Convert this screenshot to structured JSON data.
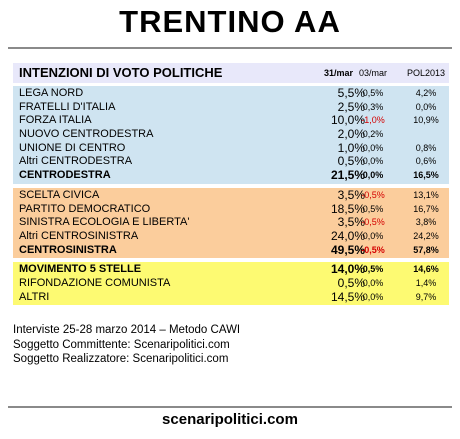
{
  "title": "TRENTINO AA",
  "header": {
    "label": "INTENZIONI DI VOTO POLITICHE",
    "col1": "31/mar",
    "col2": "03/mar",
    "col3": "POL2013"
  },
  "centrodestra": [
    {
      "name": "LEGA NORD",
      "v1": "5,5%",
      "v2": "0,5%",
      "v3": "4,2%"
    },
    {
      "name": "FRATELLI D'ITALIA",
      "v1": "2,5%",
      "v2": "0,3%",
      "v3": "0,0%"
    },
    {
      "name": "FORZA ITALIA",
      "v1": "10,0%",
      "v2": "-1,0%",
      "v2_neg": true,
      "v3": "10,9%"
    },
    {
      "name": "NUOVO CENTRODESTRA",
      "v1": "2,0%",
      "v2": "0,2%",
      "v3": ""
    },
    {
      "name": "UNIONE DI CENTRO",
      "v1": "1,0%",
      "v2": "0,0%",
      "v3": "0,8%"
    },
    {
      "name": "Altri CENTRODESTRA",
      "v1": "0,5%",
      "v2": "0,0%",
      "v3": "0,6%"
    }
  ],
  "centrodestra_total": {
    "name": "CENTRODESTRA",
    "v1": "21,5%",
    "v2": "0,0%",
    "v3": "16,5%"
  },
  "centrosinistra": [
    {
      "name": "SCELTA CIVICA",
      "v1": "3,5%",
      "v2": "-0,5%",
      "v2_neg": true,
      "v3": "13,1%"
    },
    {
      "name": "PARTITO DEMOCRATICO",
      "v1": "18,5%",
      "v2": "0,5%",
      "v3": "16,7%"
    },
    {
      "name": "SINISTRA ECOLOGIA E LIBERTA'",
      "v1": "3,5%",
      "v2": "-0,5%",
      "v2_neg": true,
      "v3": "3,8%"
    },
    {
      "name": "Altri CENTROSINISTRA",
      "v1": "24,0%",
      "v2": "0,0%",
      "v3": "24,2%"
    }
  ],
  "centrosinistra_total": {
    "name": "CENTROSINISTRA",
    "v1": "49,5%",
    "v2": "-0,5%",
    "v2_neg": true,
    "v3": "57,8%"
  },
  "altri": [
    {
      "name": "MOVIMENTO 5 STELLE",
      "v1": "14,0%",
      "v2": "0,5%",
      "v3": "14,6%",
      "bold": true
    },
    {
      "name": "RIFONDAZIONE COMUNISTA",
      "v1": "0,5%",
      "v2": "0,0%",
      "v3": "1,4%"
    },
    {
      "name": "ALTRI",
      "v1": "14,5%",
      "v2": "0,0%",
      "v3": "9,7%"
    }
  ],
  "notes": [
    "Interviste 25-28 marzo 2014 – Metodo CAWI",
    "Soggetto Committente: Scenaripolitici.com",
    "Soggetto Realizzatore: Scenaripolitici.com"
  ],
  "footer": "scenaripolitici.com",
  "colors": {
    "header_bg": "#e8e8fa",
    "centrodestra_bg": "#cfe4f1",
    "centrosinistra_bg": "#fbcd9c",
    "altri_bg": "#fdfa72",
    "negative": "#d40000"
  }
}
